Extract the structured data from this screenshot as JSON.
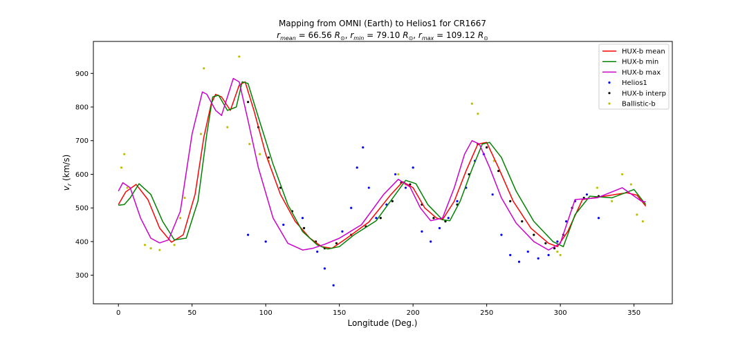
{
  "chart_data": {
    "type": "line",
    "title": "Mapping from OMNI (Earth) to Helios1 for CR1667",
    "subtitle": {
      "r_mean": "66.56",
      "r_min": "79.10",
      "r_max": "109.12"
    },
    "xlabel": "Longitude (Deg.)",
    "ylabel": "v_r (km/s)",
    "xlim": [
      -17,
      376
    ],
    "ylim": [
      215,
      995
    ],
    "xticks": [
      0,
      50,
      100,
      150,
      200,
      250,
      300,
      350
    ],
    "yticks": [
      300,
      400,
      500,
      600,
      700,
      800,
      900
    ],
    "legend_position": "top-right",
    "series": [
      {
        "name": "HUX-b mean",
        "kind": "line",
        "color": "#ff0000",
        "x": [
          0,
          5,
          12,
          20,
          28,
          36,
          44,
          52,
          58,
          63,
          66,
          70,
          76,
          82,
          86,
          92,
          100,
          110,
          120,
          130,
          138,
          145,
          155,
          170,
          185,
          193,
          200,
          208,
          216,
          220,
          228,
          236,
          244,
          250,
          258,
          268,
          280,
          292,
          298,
          305,
          315,
          330,
          345,
          352,
          358
        ],
        "y": [
          510,
          548,
          570,
          525,
          440,
          398,
          420,
          540,
          710,
          810,
          838,
          830,
          790,
          865,
          875,
          790,
          660,
          540,
          460,
          410,
          385,
          380,
          410,
          458,
          540,
          578,
          560,
          500,
          470,
          465,
          520,
          610,
          690,
          695,
          620,
          520,
          440,
          395,
          385,
          430,
          525,
          535,
          545,
          538,
          505
        ]
      },
      {
        "name": "HUX-b min",
        "kind": "line",
        "color": "#008000",
        "x": [
          0,
          4,
          8,
          14,
          22,
          30,
          38,
          46,
          54,
          60,
          64,
          68,
          74,
          80,
          84,
          88,
          95,
          105,
          115,
          125,
          135,
          142,
          150,
          160,
          175,
          188,
          195,
          202,
          210,
          220,
          225,
          232,
          240,
          247,
          252,
          260,
          270,
          282,
          295,
          302,
          310,
          320,
          335,
          350,
          358
        ],
        "y": [
          508,
          510,
          530,
          572,
          540,
          460,
          405,
          410,
          520,
          720,
          830,
          835,
          790,
          800,
          875,
          870,
          770,
          630,
          510,
          430,
          390,
          378,
          385,
          420,
          462,
          540,
          582,
          572,
          510,
          465,
          462,
          520,
          615,
          690,
          695,
          650,
          550,
          460,
          400,
          385,
          480,
          535,
          530,
          555,
          510
        ]
      },
      {
        "name": "HUX-b max",
        "kind": "line",
        "color": "#cc00cc",
        "x": [
          0,
          3,
          8,
          15,
          22,
          28,
          34,
          42,
          50,
          57,
          60,
          66,
          70,
          74,
          78,
          82,
          88,
          95,
          105,
          115,
          125,
          132,
          140,
          150,
          165,
          180,
          190,
          198,
          205,
          212,
          220,
          228,
          235,
          240,
          245,
          252,
          260,
          270,
          282,
          292,
          300,
          310,
          325,
          342,
          355,
          358
        ],
        "y": [
          550,
          575,
          560,
          470,
          410,
          396,
          405,
          490,
          720,
          845,
          838,
          790,
          775,
          830,
          885,
          875,
          760,
          620,
          470,
          395,
          375,
          380,
          392,
          410,
          450,
          540,
          585,
          562,
          500,
          462,
          470,
          560,
          660,
          700,
          690,
          620,
          530,
          455,
          400,
          375,
          395,
          525,
          530,
          560,
          520,
          518
        ]
      },
      {
        "name": "Helios1",
        "kind": "scatter",
        "color": "#0000ff",
        "x": [
          88,
          100,
          112,
          125,
          135,
          140,
          146,
          152,
          158,
          162,
          166,
          170,
          175,
          182,
          188,
          195,
          200,
          206,
          212,
          218,
          224,
          230,
          236,
          242,
          248,
          254,
          260,
          266,
          272,
          278,
          285,
          292,
          298,
          304,
          310,
          318,
          326
        ],
        "y": [
          420,
          400,
          450,
          470,
          370,
          320,
          270,
          430,
          500,
          620,
          680,
          560,
          470,
          510,
          600,
          560,
          620,
          430,
          400,
          440,
          470,
          520,
          560,
          640,
          660,
          540,
          420,
          360,
          340,
          370,
          350,
          360,
          400,
          460,
          520,
          540,
          470
        ]
      },
      {
        "name": "HUX-b interp",
        "kind": "scatter",
        "color": "#000000",
        "x": [
          88,
          95,
          102,
          110,
          118,
          126,
          134,
          140,
          148,
          158,
          168,
          178,
          186,
          192,
          198,
          206,
          214,
          222,
          230,
          238,
          244,
          250,
          258,
          266,
          274,
          282,
          290,
          296,
          302,
          308,
          316,
          326
        ],
        "y": [
          815,
          740,
          650,
          560,
          490,
          440,
          400,
          380,
          395,
          420,
          445,
          470,
          520,
          575,
          570,
          510,
          470,
          460,
          510,
          600,
          690,
          680,
          610,
          520,
          460,
          420,
          395,
          380,
          420,
          500,
          530,
          535
        ]
      },
      {
        "name": "Ballistic-b",
        "kind": "scatter",
        "color": "#bfbf00",
        "x": [
          2,
          4,
          6,
          18,
          22,
          28,
          38,
          42,
          45,
          56,
          58,
          74,
          82,
          89,
          96,
          102,
          190,
          195,
          240,
          244,
          255,
          298,
          300,
          325,
          335,
          342,
          348,
          352,
          356
        ],
        "y": [
          620,
          660,
          560,
          390,
          380,
          375,
          390,
          470,
          530,
          720,
          915,
          740,
          950,
          690,
          660,
          640,
          600,
          570,
          810,
          780,
          640,
          370,
          360,
          560,
          520,
          600,
          570,
          480,
          460
        ]
      }
    ]
  }
}
